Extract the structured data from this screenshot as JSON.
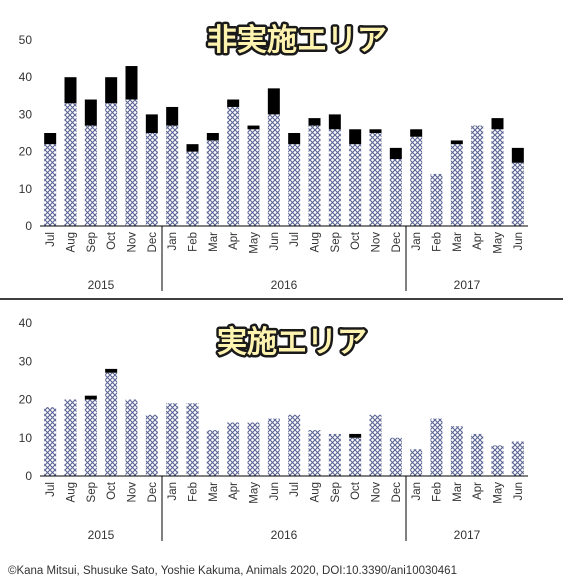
{
  "chart_data": [
    {
      "type": "bar",
      "stacked": true,
      "title": "非実施エリア",
      "categories": [
        "Jul",
        "Aug",
        "Sep",
        "Oct",
        "Nov",
        "Dec",
        "Jan",
        "Feb",
        "Mar",
        "Apr",
        "May",
        "Jun",
        "Jul",
        "Aug",
        "Sep",
        "Oct",
        "Nov",
        "Dec",
        "Jan",
        "Feb",
        "Mar",
        "Apr",
        "May",
        "Jun"
      ],
      "years": [
        {
          "label": "2015",
          "from": 0,
          "to": 5
        },
        {
          "label": "2016",
          "from": 6,
          "to": 17
        },
        {
          "label": "2017",
          "from": 18,
          "to": 23
        }
      ],
      "ylim": [
        0,
        50
      ],
      "yticks": [
        0,
        10,
        20,
        30,
        40,
        50
      ],
      "series": [
        {
          "values": [
            22,
            33,
            27,
            33,
            34,
            25,
            27,
            20,
            23,
            32,
            26,
            30,
            22,
            27,
            26,
            22,
            25,
            18,
            24,
            14,
            22,
            27,
            26,
            17
          ],
          "pattern": "hatched",
          "color": "#8a91b8"
        },
        {
          "values": [
            3,
            7,
            7,
            7,
            9,
            5,
            5,
            2,
            2,
            2,
            1,
            7,
            3,
            2,
            4,
            4,
            1,
            3,
            2,
            0,
            1,
            0,
            3,
            4
          ],
          "pattern": "solid",
          "color": "#000000"
        }
      ],
      "xlabel": "",
      "ylabel": ""
    },
    {
      "type": "bar",
      "stacked": true,
      "title": "実施エリア",
      "categories": [
        "Jul",
        "Aug",
        "Sep",
        "Oct",
        "Nov",
        "Dec",
        "Jan",
        "Feb",
        "Mar",
        "Apr",
        "May",
        "Jun",
        "Jul",
        "Aug",
        "Sep",
        "Oct",
        "Nov",
        "Dec",
        "Jan",
        "Feb",
        "Mar",
        "Apr",
        "May",
        "Jun"
      ],
      "years": [
        {
          "label": "2015",
          "from": 0,
          "to": 5
        },
        {
          "label": "2016",
          "from": 6,
          "to": 17
        },
        {
          "label": "2017",
          "from": 18,
          "to": 23
        }
      ],
      "ylim": [
        0,
        40
      ],
      "yticks": [
        0,
        10,
        20,
        30,
        40
      ],
      "series": [
        {
          "values": [
            18,
            20,
            20,
            27,
            20,
            16,
            19,
            19,
            12,
            14,
            14,
            15,
            16,
            12,
            11,
            10,
            16,
            10,
            7,
            15,
            13,
            11,
            8,
            9
          ],
          "pattern": "hatched",
          "color": "#8a91b8"
        },
        {
          "values": [
            0,
            0,
            1,
            1,
            0,
            0,
            0,
            0,
            0,
            0,
            0,
            0,
            0,
            0,
            0,
            1,
            0,
            0,
            0,
            0,
            0,
            0,
            0,
            0
          ],
          "pattern": "solid",
          "color": "#000000"
        }
      ],
      "xlabel": "",
      "ylabel": ""
    }
  ],
  "credit": "©Kana Mitsui, Shusuke Sato, Yoshie Kakuma, Animals 2020, DOI:10.3390/ani10030461"
}
